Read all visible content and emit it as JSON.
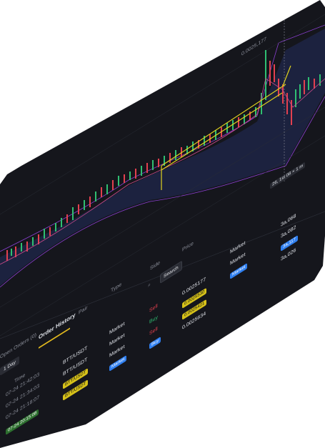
{
  "chart": {
    "price_tag": "26, 1st 08 × 1 m",
    "top_label": "0.0025,177"
  },
  "toolbar": {
    "search_label": "Search"
  },
  "tabs": {
    "open_orders": "Open Orders (0)",
    "order_history": "Order History"
  },
  "filters": {
    "day": "1 Day"
  },
  "headers": {
    "time": "Time",
    "pair": "Pair",
    "type": "Type",
    "side": "Side",
    "price": "Price"
  },
  "rows": [
    {
      "time": "07-24 21:42:03",
      "pair": "BTT/USDT",
      "type": "Market",
      "side": "Sell",
      "price": "0.0025177"
    },
    {
      "time": "07-24 21:34:03",
      "pair": "BTT/USDT",
      "type": "Market",
      "side": "Buy",
      "price": "0.0025530"
    },
    {
      "time": "07-24 21:18:07",
      "pair": "BTT/USDT",
      "type": "Market",
      "side": "Sell",
      "price": "0.0025421"
    },
    {
      "time": "07-24 20:15:08",
      "pair": "BTT/USDT",
      "type": "Market",
      "side": "Buy",
      "price": "0.0025634"
    }
  ],
  "right_col": {
    "type1": "Market",
    "type2": "Market",
    "type3": "Market",
    "amount1": "3a,068",
    "amount2": "3a,082",
    "amount3": "3a,117",
    "amount4": "3a,026"
  },
  "colors": {
    "bg": "#15161c",
    "up": "#2fbf72",
    "down": "#e2404f",
    "accent": "#e0b81e",
    "blue": "#2f7ff0"
  }
}
